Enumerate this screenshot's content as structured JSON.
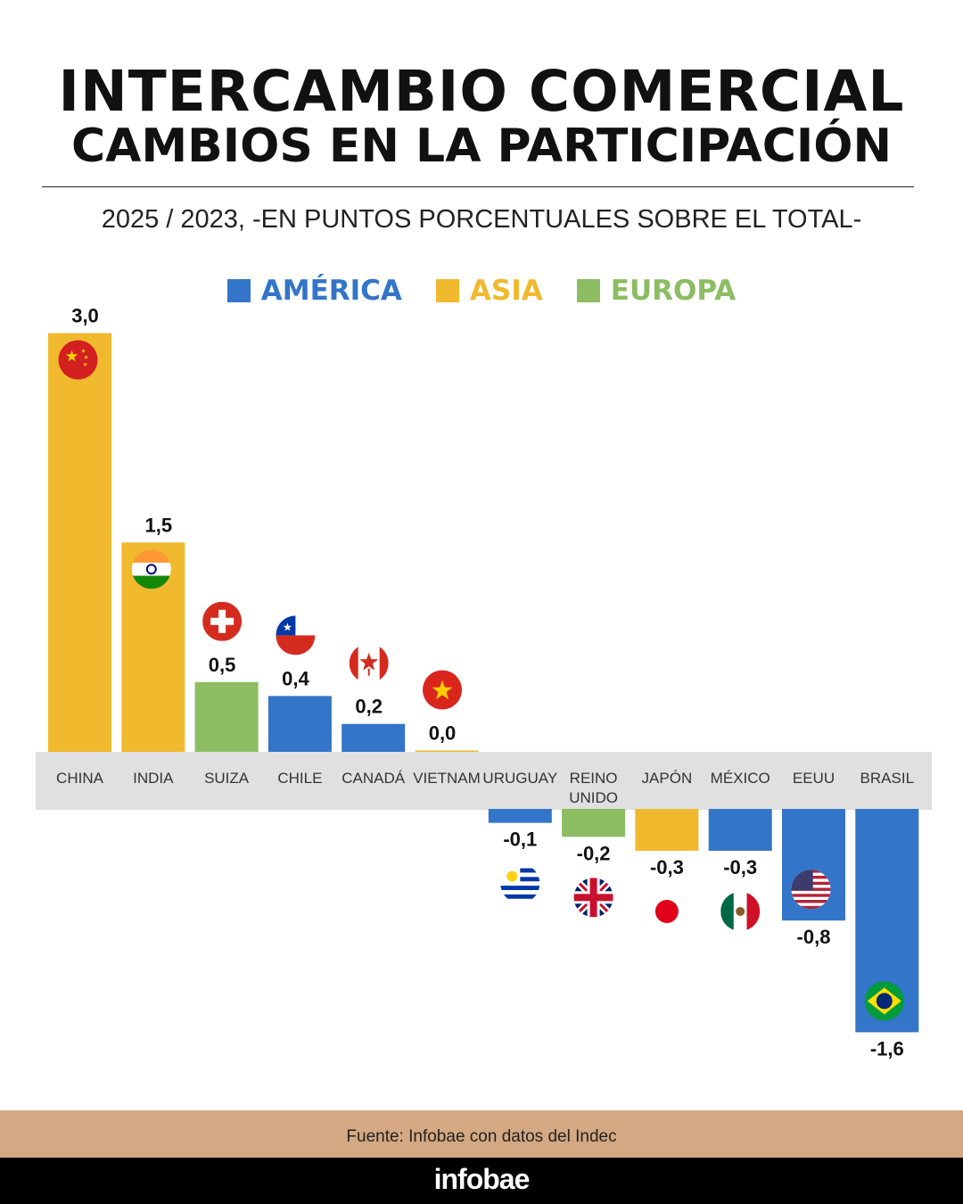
{
  "header": {
    "title": "INTERCAMBIO COMERCIAL",
    "title2": "CAMBIOS EN LA PARTICIPACIÓN",
    "subtitle": "2025 / 2023, -EN PUNTOS PORCENTUALES SOBRE EL TOTAL-"
  },
  "colors": {
    "america": "#3375c8",
    "asia": "#f0b92e",
    "europa": "#8cbd62",
    "band": "#e0e0e0"
  },
  "chart_data": {
    "type": "bar",
    "title": "INTERCAMBIO COMERCIAL - CAMBIOS EN LA PARTICIPACIÓN",
    "subtitle": "2025 / 2023, -EN PUNTOS PORCENTUALES SOBRE EL TOTAL-",
    "legend": [
      {
        "name": "AMÉRICA",
        "key": "america"
      },
      {
        "name": "ASIA",
        "key": "asia"
      },
      {
        "name": "EUROPA",
        "key": "europa"
      }
    ],
    "legend_position": "top-center",
    "categories": [
      "CHINA",
      "INDIA",
      "SUIZA",
      "CHILE",
      "CANADÁ",
      "VIETNAM",
      "URUGUAY",
      "REINO UNIDO",
      "JAPÓN",
      "MÉXICO",
      "EEUU",
      "BRASIL"
    ],
    "values": [
      3.0,
      1.5,
      0.5,
      0.4,
      0.2,
      0.0,
      -0.1,
      -0.2,
      -0.3,
      -0.3,
      -0.8,
      -1.6
    ],
    "labels": [
      "3,0",
      "1,5",
      "0,5",
      "0,4",
      "0,2",
      "0,0",
      "-0,1",
      "-0,2",
      "-0,3",
      "-0,3",
      "-0,8",
      "-1,6"
    ],
    "regions": [
      "asia",
      "asia",
      "europa",
      "america",
      "america",
      "asia",
      "america",
      "europa",
      "asia",
      "america",
      "america",
      "america"
    ],
    "flags": [
      "china-flag-icon",
      "india-flag-icon",
      "switzerland-flag-icon",
      "chile-flag-icon",
      "canada-flag-icon",
      "vietnam-flag-icon",
      "uruguay-flag-icon",
      "uk-flag-icon",
      "japan-flag-icon",
      "mexico-flag-icon",
      "usa-flag-icon",
      "brazil-flag-icon"
    ],
    "grid": false
  },
  "footer": {
    "source": "Fuente: Infobae con datos del Indec",
    "brand": "infobae"
  }
}
